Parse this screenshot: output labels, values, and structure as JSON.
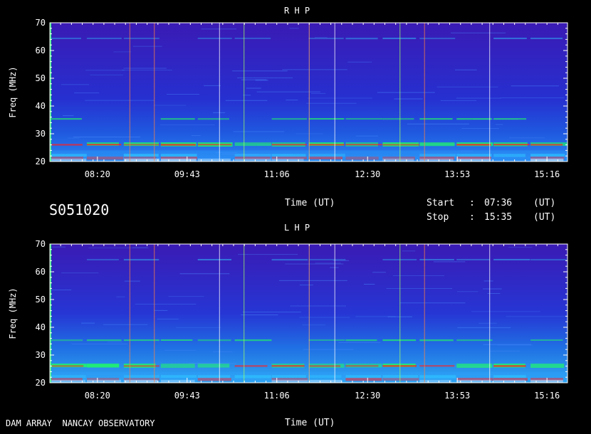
{
  "chart_data": [
    {
      "type": "heatmap",
      "title": "R H P",
      "ylabel": "Freq (MHz)",
      "xlabel": "Time (UT)",
      "ylim": [
        20,
        70
      ],
      "yticks": [
        "70",
        "60",
        "50",
        "40",
        "30",
        "20"
      ],
      "xticks": [
        "08:20",
        "09:43",
        "11:06",
        "12:30",
        "13:53",
        "15:16"
      ],
      "x_tick_times": [
        "08:20",
        "09:43",
        "11:06",
        "12:30",
        "13:53",
        "15:16"
      ],
      "time_range": [
        "07:36",
        "15:35"
      ]
    },
    {
      "type": "heatmap",
      "title": "L H P",
      "ylabel": "Freq (MHz)",
      "xlabel": "Time (UT)",
      "ylim": [
        20,
        70
      ],
      "yticks": [
        "70",
        "60",
        "50",
        "40",
        "30",
        "20"
      ],
      "xticks": [
        "08:20",
        "09:43",
        "11:06",
        "12:30",
        "13:53",
        "15:16"
      ],
      "x_tick_times": [
        "08:20",
        "09:43",
        "11:06",
        "12:30",
        "13:53",
        "15:16"
      ],
      "time_range": [
        "07:36",
        "15:35"
      ]
    }
  ],
  "info": {
    "session_id": "S051020",
    "time_label": "Time (UT)",
    "start_label": "Start",
    "stop_label": "Stop",
    "colon": ":",
    "start_time": "07:36",
    "stop_time": "15:35",
    "unit": "(UT)"
  },
  "footer": {
    "observatory": "DAM ARRAY  NANCAY OBSERVATORY",
    "time_label": "Time (UT)"
  },
  "colors": {
    "background": "#3a18b8",
    "band_hot": "#ff2020",
    "band_mid": "#20ff60",
    "band_low": "#30d0ff"
  }
}
